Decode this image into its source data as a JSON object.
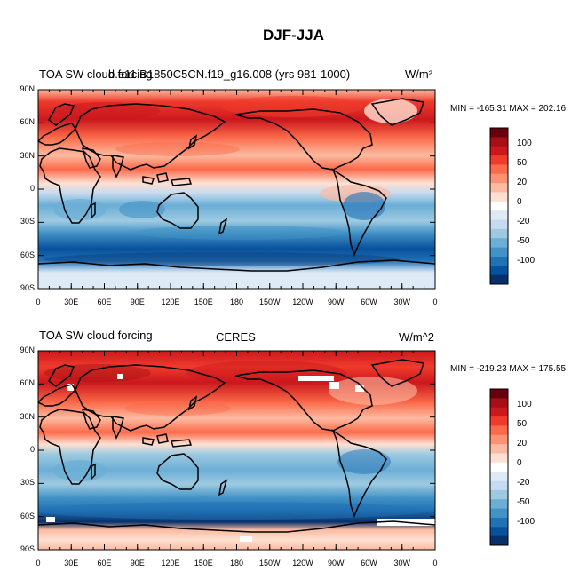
{
  "figure": {
    "main_title": "DJF-JJA",
    "lat_ticks": [
      "90N",
      "60N",
      "30N",
      "0",
      "30S",
      "60S",
      "90S"
    ],
    "lon_ticks": [
      "0",
      "30E",
      "60E",
      "90E",
      "120E",
      "150E",
      "180",
      "150W",
      "120W",
      "90W",
      "60W",
      "30W",
      "0"
    ],
    "colorbar_labels": [
      "100",
      "50",
      "20",
      "0",
      "-20",
      "-50",
      "-100"
    ],
    "colorbar_colors": [
      "#67000d",
      "#a50f15",
      "#cb181d",
      "#ef3b2c",
      "#fb6a4a",
      "#fc9272",
      "#fcbba1",
      "#fee0d2",
      "#ffffff",
      "#deebf7",
      "#c6dbef",
      "#9ecae1",
      "#6baed6",
      "#4292c6",
      "#2171b5",
      "#08519c",
      "#08306b"
    ]
  },
  "panels": [
    {
      "left_title": "TOA SW cloud forcing",
      "center_title": "b.e11.B1850C5CN.f19_g16.008 (yrs 981-1000)",
      "units": "W/m²",
      "minmax": "MIN = -165.31 MAX = 202.16"
    },
    {
      "left_title": "TOA SW cloud forcing",
      "center_title": "CERES",
      "units": "W/m^2",
      "minmax": "MIN = -219.23 MAX = 175.55"
    }
  ]
}
